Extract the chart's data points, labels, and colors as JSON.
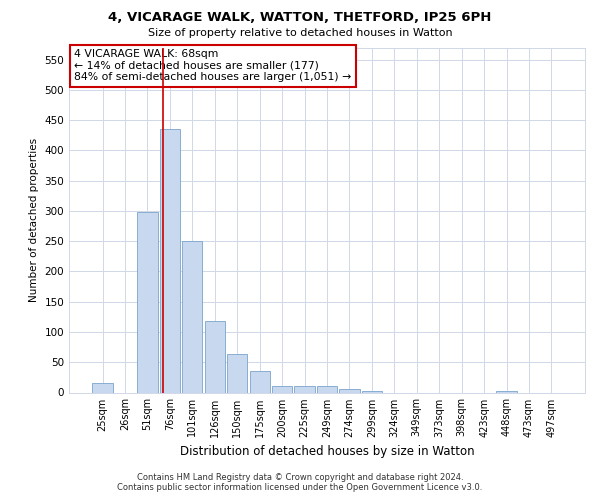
{
  "title_line1": "4, VICARAGE WALK, WATTON, THETFORD, IP25 6PH",
  "title_line2": "Size of property relative to detached houses in Watton",
  "xlabel": "Distribution of detached houses by size in Watton",
  "ylabel": "Number of detached properties",
  "bar_labels": [
    "25sqm",
    "26sqm",
    "51sqm",
    "76sqm",
    "101sqm",
    "126sqm",
    "150sqm",
    "175sqm",
    "200sqm",
    "225sqm",
    "249sqm",
    "274sqm",
    "299sqm",
    "324sqm",
    "349sqm",
    "373sqm",
    "398sqm",
    "423sqm",
    "448sqm",
    "473sqm",
    "497sqm"
  ],
  "bar_values": [
    15,
    0,
    298,
    435,
    250,
    118,
    63,
    36,
    10,
    10,
    10,
    5,
    3,
    0,
    0,
    0,
    0,
    0,
    3,
    0,
    0
  ],
  "bar_color": "#c8d9ef",
  "bar_edge_color": "#7aa4cc",
  "vline_x": 2.68,
  "vline_color": "#cc0000",
  "annotation_text": "4 VICARAGE WALK: 68sqm\n← 14% of detached houses are smaller (177)\n84% of semi-detached houses are larger (1,051) →",
  "annotation_box_color": "#ffffff",
  "annotation_box_edge_color": "#cc0000",
  "ylim": [
    0,
    570
  ],
  "yticks": [
    0,
    50,
    100,
    150,
    200,
    250,
    300,
    350,
    400,
    450,
    500,
    550
  ],
  "footer_line1": "Contains HM Land Registry data © Crown copyright and database right 2024.",
  "footer_line2": "Contains public sector information licensed under the Open Government Licence v3.0.",
  "background_color": "#ffffff",
  "grid_color": "#d0d8e8"
}
